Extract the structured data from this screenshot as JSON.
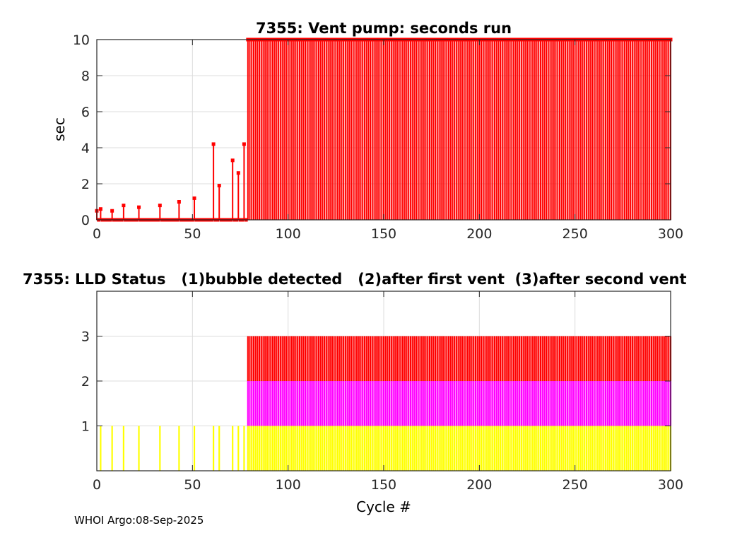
{
  "chart_data": [
    {
      "type": "stem",
      "title": "7355: Vent pump: seconds run",
      "xlabel": "",
      "ylabel": "sec",
      "xlim": [
        0,
        300
      ],
      "ylim": [
        0,
        10
      ],
      "xticks": [
        "0",
        "50",
        "100",
        "150",
        "200",
        "250",
        "300"
      ],
      "yticks": [
        "0",
        "2",
        "4",
        "6",
        "8",
        "10"
      ],
      "grid": true,
      "color": "#ff0000",
      "nonzero_points": [
        [
          0,
          0.5
        ],
        [
          2,
          0.6
        ],
        [
          8,
          0.5
        ],
        [
          14,
          0.8
        ],
        [
          22,
          0.7
        ],
        [
          33,
          0.8
        ],
        [
          43,
          1.0
        ],
        [
          51,
          1.2
        ],
        [
          61,
          4.2
        ],
        [
          64,
          1.9
        ],
        [
          71,
          3.3
        ],
        [
          74,
          2.6
        ],
        [
          77,
          4.2
        ]
      ],
      "baseline_value": 0,
      "constant_run": {
        "from": 79,
        "to": 300,
        "value": 10
      }
    },
    {
      "type": "bar",
      "title": "7355: LLD Status   (1)bubble detected   (2)after first vent  (3)after second vent",
      "xlabel": "Cycle #",
      "ylabel": "",
      "xlim": [
        0,
        300
      ],
      "ylim": [
        0,
        4
      ],
      "xticks": [
        "0",
        "50",
        "100",
        "150",
        "200",
        "250",
        "300"
      ],
      "yticks": [
        "1",
        "2",
        "3"
      ],
      "grid": true,
      "level_colors": [
        "#ffff00",
        "#ff00ff",
        "#ff0000"
      ],
      "status_points": [
        [
          2,
          1
        ],
        [
          8,
          1
        ],
        [
          14,
          1
        ],
        [
          22,
          1
        ],
        [
          33,
          1
        ],
        [
          43,
          1
        ],
        [
          51,
          1
        ],
        [
          61,
          1
        ],
        [
          64,
          1
        ],
        [
          71,
          1
        ],
        [
          74,
          1
        ],
        [
          77,
          1
        ]
      ],
      "constant_run": {
        "from": 79,
        "to": 300,
        "value": 3
      }
    }
  ],
  "footer": "WHOI Argo:08-Sep-2025"
}
